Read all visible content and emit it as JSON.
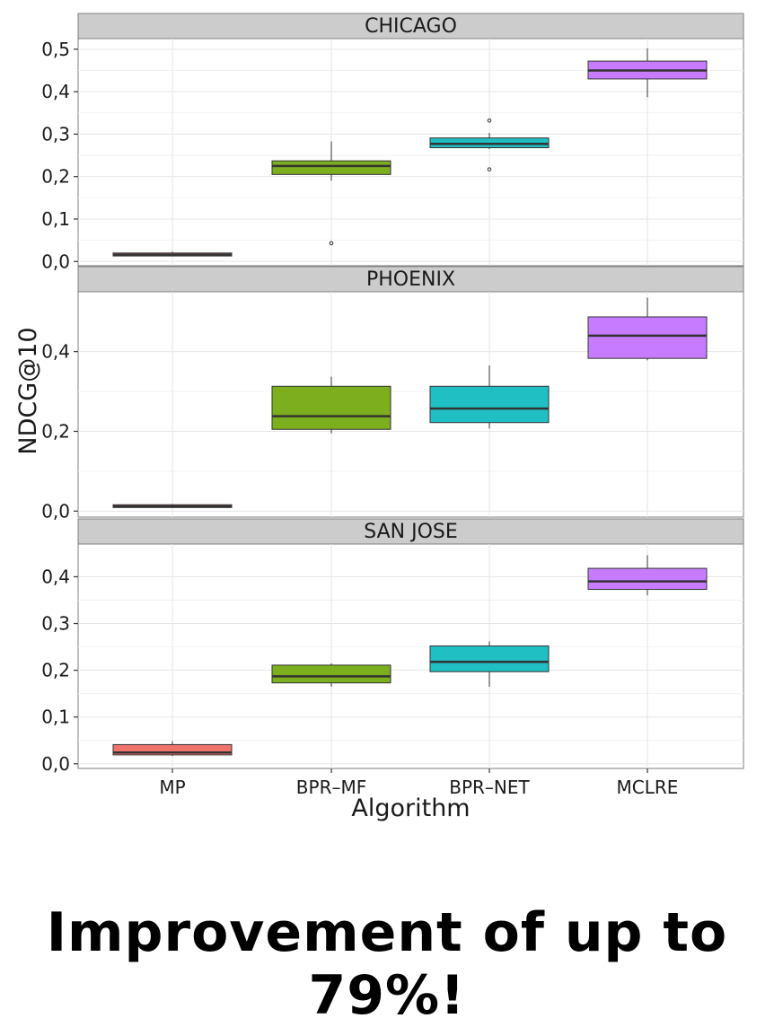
{
  "chart_data": {
    "type": "boxplot",
    "xlabel": "Algorithm",
    "ylabel": "NDCG@10",
    "categories": [
      "MP",
      "BPR–MF",
      "BPR–NET",
      "MCLRE"
    ],
    "colors": {
      "MP": "#f0736c",
      "BPR–MF": "#7cae1e",
      "BPR–NET": "#1fbfc3",
      "MCLRE": "#c77cff"
    },
    "grid": true,
    "legend": "none",
    "panels": [
      {
        "title": "CHICAGO",
        "ylim": [
          -0.01,
          0.525
        ],
        "yticks": [
          0.0,
          0.1,
          0.2,
          0.3,
          0.4,
          0.5
        ],
        "tick_labels": [
          "0,0",
          "0,1",
          "0,2",
          "0,3",
          "0,4",
          "0,5"
        ],
        "boxes": [
          {
            "category": "MP",
            "min": 0.012,
            "q1": 0.013,
            "median": 0.016,
            "q3": 0.02,
            "max": 0.023,
            "outliers": []
          },
          {
            "category": "BPR–MF",
            "min": 0.19,
            "q1": 0.205,
            "median": 0.225,
            "q3": 0.237,
            "max": 0.283,
            "outliers": [
              0.043
            ]
          },
          {
            "category": "BPR–NET",
            "min": 0.265,
            "q1": 0.268,
            "median": 0.277,
            "q3": 0.291,
            "max": 0.303,
            "outliers": [
              0.217,
              0.332
            ]
          },
          {
            "category": "MCLRE",
            "min": 0.387,
            "q1": 0.43,
            "median": 0.45,
            "q3": 0.472,
            "max": 0.502,
            "outliers": []
          }
        ]
      },
      {
        "title": "PHOENIX",
        "ylim": [
          -0.015,
          0.55
        ],
        "yticks": [
          0.0,
          0.2,
          0.4
        ],
        "tick_labels": [
          "0,0",
          "0,2",
          "0,4"
        ],
        "boxes": [
          {
            "category": "MP",
            "min": 0.008,
            "q1": 0.009,
            "median": 0.012,
            "q3": 0.016,
            "max": 0.018,
            "outliers": []
          },
          {
            "category": "BPR–MF",
            "min": 0.195,
            "q1": 0.205,
            "median": 0.238,
            "q3": 0.313,
            "max": 0.337,
            "outliers": []
          },
          {
            "category": "BPR–NET",
            "min": 0.207,
            "q1": 0.222,
            "median": 0.257,
            "q3": 0.313,
            "max": 0.365,
            "outliers": []
          },
          {
            "category": "MCLRE",
            "min": 0.378,
            "q1": 0.383,
            "median": 0.44,
            "q3": 0.487,
            "max": 0.535,
            "outliers": []
          }
        ]
      },
      {
        "title": "SAN JOSE",
        "ylim": [
          -0.01,
          0.47
        ],
        "yticks": [
          0.0,
          0.1,
          0.2,
          0.3,
          0.4
        ],
        "tick_labels": [
          "0,0",
          "0,1",
          "0,2",
          "0,3",
          "0,4"
        ],
        "boxes": [
          {
            "category": "MP",
            "min": 0.017,
            "q1": 0.019,
            "median": 0.024,
            "q3": 0.041,
            "max": 0.048,
            "outliers": []
          },
          {
            "category": "BPR–MF",
            "min": 0.165,
            "q1": 0.173,
            "median": 0.187,
            "q3": 0.211,
            "max": 0.215,
            "outliers": []
          },
          {
            "category": "BPR–NET",
            "min": 0.165,
            "q1": 0.197,
            "median": 0.218,
            "q3": 0.252,
            "max": 0.262,
            "outliers": []
          },
          {
            "category": "MCLRE",
            "min": 0.36,
            "q1": 0.373,
            "median": 0.39,
            "q3": 0.418,
            "max": 0.446,
            "outliers": []
          }
        ]
      }
    ]
  },
  "headline": "Improvement of up to 79%!"
}
